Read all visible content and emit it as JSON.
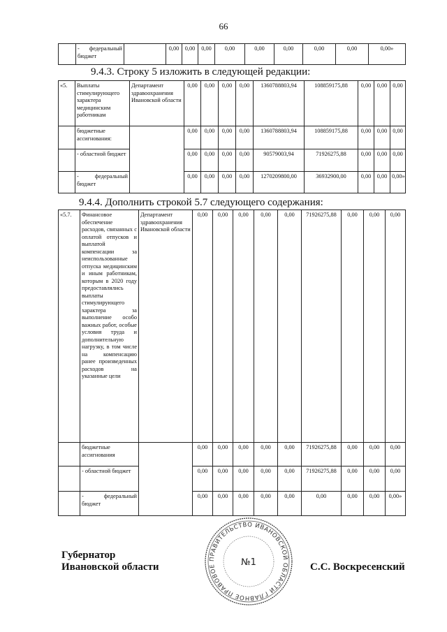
{
  "page_number": "66",
  "table1": {
    "rows": [
      {
        "num": "",
        "name": "- федеральный бюджет",
        "org": "",
        "values": [
          "0,00",
          "0,00",
          "0,00",
          "0,00",
          "0,00",
          "0,00",
          "0,00",
          "0,00",
          "0,00»"
        ]
      }
    ]
  },
  "heading_943": "9.4.3. Строку 5 изложить в следующей редакции:",
  "table2": {
    "rows": [
      {
        "num": "«5.",
        "name": "Выплаты стимулирующего характера медицинским работникам",
        "org": "Департамент здравоохранения Ивановской области",
        "values": [
          "0,00",
          "0,00",
          "0,00",
          "0,00",
          "1360788803,94",
          "108859175,88",
          "0,00",
          "0,00",
          "0,00"
        ]
      },
      {
        "num": "",
        "name": "бюджетные ассигнования:",
        "org": "",
        "values": [
          "0,00",
          "0,00",
          "0,00",
          "0,00",
          "1360788803,94",
          "108859175,88",
          "0,00",
          "0,00",
          "0,00"
        ]
      },
      {
        "num": "",
        "name": "- областной бюджет",
        "org": "",
        "values": [
          "0,00",
          "0,00",
          "0,00",
          "0,00",
          "90579003,94",
          "71926275,88",
          "0,00",
          "0,00",
          "0,00"
        ]
      },
      {
        "num": "",
        "name": "- федеральный бюджет",
        "org": "",
        "values": [
          "0,00",
          "0,00",
          "0,00",
          "0,00",
          "1270209800,00",
          "36932900,00",
          "0,00",
          "0,00",
          "0,00»"
        ]
      }
    ]
  },
  "heading_944": "9.4.4. Дополнить строкой 5.7 следующего содержания:",
  "table3": {
    "rows": [
      {
        "num": "«5.7.",
        "name": "Финансовое обеспечение расходов, связанных с оплатой отпусков и выплатой компенсации за неиспользованные отпуска медицинским и иным работникам, которым в 2020 году предоставлялись выплаты стимулирующего характера за выполнение особо важных работ, особые условия труда и дополнительную нагрузку, в том числе на компенсацию ранее произведенных расходов на указанные цели",
        "org": "Департамент здравоохранения Ивановской области",
        "values": [
          "0,00",
          "0,00",
          "0,00",
          "0,00",
          "0,00",
          "71926275,88",
          "0,00",
          "0,00",
          "0,00"
        ]
      },
      {
        "num": "",
        "name": "бюджетные ассигнования",
        "org": "",
        "values": [
          "0,00",
          "0,00",
          "0,00",
          "0,00",
          "0,00",
          "71926275,88",
          "0,00",
          "0,00",
          "0,00"
        ]
      },
      {
        "num": "",
        "name": "- областной бюджет",
        "org": "",
        "values": [
          "0,00",
          "0,00",
          "0,00",
          "0,00",
          "0,00",
          "71926275,88",
          "0,00",
          "0,00",
          "0,00"
        ]
      },
      {
        "num": "",
        "name": "- федеральный бюджет",
        "org": "",
        "values": [
          "0,00",
          "0,00",
          "0,00",
          "0,00",
          "0,00",
          "0,00",
          "0,00",
          "0,00",
          "0,00»"
        ]
      }
    ]
  },
  "signature": {
    "title_line1": "Губернатор",
    "title_line2": "Ивановской области",
    "name": "С.С. Воскресенский"
  },
  "stamp": {
    "text": "ПРАВИТЕЛЬСТВО ИВАНОВСКОЙ ОБЛАСТИ ГЛАВНОЕ ПРАВОВОЕ УПРАВЛЕНИЕ",
    "number": "№1"
  }
}
